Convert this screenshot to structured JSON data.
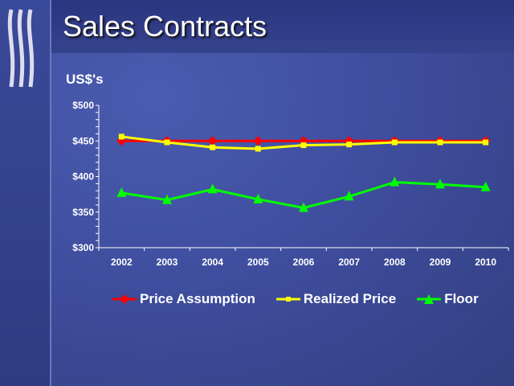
{
  "slide": {
    "title": "Sales Contracts",
    "unit_label": "US$'s"
  },
  "chart_data": {
    "type": "line",
    "title": "",
    "xlabel": "",
    "ylabel": "US$'s",
    "categories": [
      "2002",
      "2003",
      "2004",
      "2005",
      "2006",
      "2007",
      "2008",
      "2009",
      "2010"
    ],
    "ylim": [
      300,
      500
    ],
    "yticks": [
      "$300",
      "$350",
      "$400",
      "$450",
      "$500"
    ],
    "ytick_values": [
      300,
      350,
      400,
      450,
      500
    ],
    "grid": false,
    "legend": "bottom",
    "series": [
      {
        "name": "Price Assumption",
        "color": "#ff0000",
        "marker": "diamond",
        "values": [
          450,
          450,
          450,
          450,
          450,
          450,
          450,
          450,
          450
        ]
      },
      {
        "name": "Realized Price",
        "color": "#ffff00",
        "marker": "square",
        "values": [
          456,
          448,
          441,
          439,
          444,
          445,
          448,
          448,
          448
        ]
      },
      {
        "name": "Floor",
        "color": "#00ff00",
        "marker": "triangle",
        "values": [
          377,
          367,
          382,
          368,
          356,
          372,
          392,
          389,
          385
        ]
      }
    ]
  }
}
